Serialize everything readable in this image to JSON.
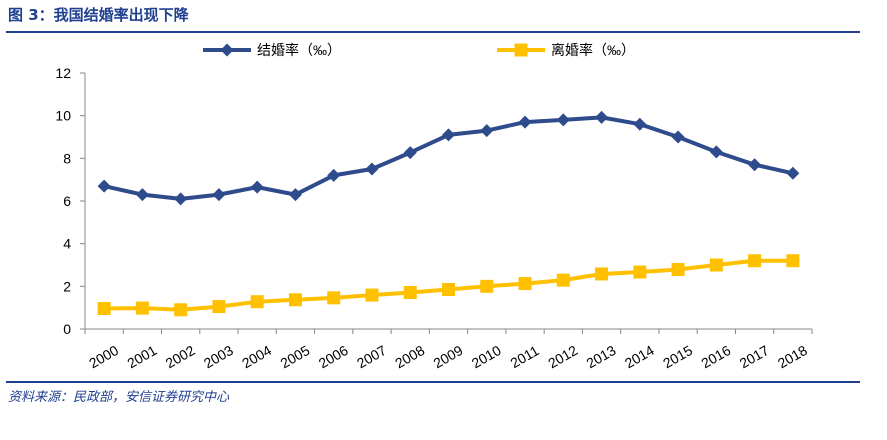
{
  "figure": {
    "title": "图 3：我国结婚率出现下降",
    "source": "资料来源：民政部，安信证券研究中心"
  },
  "chart_data": {
    "type": "line",
    "title": "",
    "xlabel": "",
    "ylabel": "",
    "x": [
      "2000",
      "2001",
      "2002",
      "2003",
      "2004",
      "2005",
      "2006",
      "2007",
      "2008",
      "2009",
      "2010",
      "2011",
      "2012",
      "2013",
      "2014",
      "2015",
      "2016",
      "2017",
      "2018"
    ],
    "ylim": [
      0,
      12
    ],
    "yticks": [
      "0",
      "2",
      "4",
      "6",
      "8",
      "10",
      "12"
    ],
    "grid": false,
    "legend": "top",
    "series": [
      {
        "name": "结婚率（‰）",
        "color": "#2e4b8c",
        "marker": "diamond",
        "values": [
          6.7,
          6.3,
          6.1,
          6.3,
          6.65,
          6.3,
          7.2,
          7.5,
          8.27,
          9.1,
          9.3,
          9.7,
          9.8,
          9.92,
          9.6,
          9.0,
          8.3,
          7.7,
          7.3
        ]
      },
      {
        "name": "离婚率（‰）",
        "color": "#ffc000",
        "marker": "square",
        "values": [
          0.96,
          0.98,
          0.9,
          1.05,
          1.28,
          1.37,
          1.46,
          1.59,
          1.71,
          1.85,
          2.0,
          2.13,
          2.29,
          2.58,
          2.67,
          2.79,
          3.0,
          3.2,
          3.2
        ]
      }
    ]
  }
}
